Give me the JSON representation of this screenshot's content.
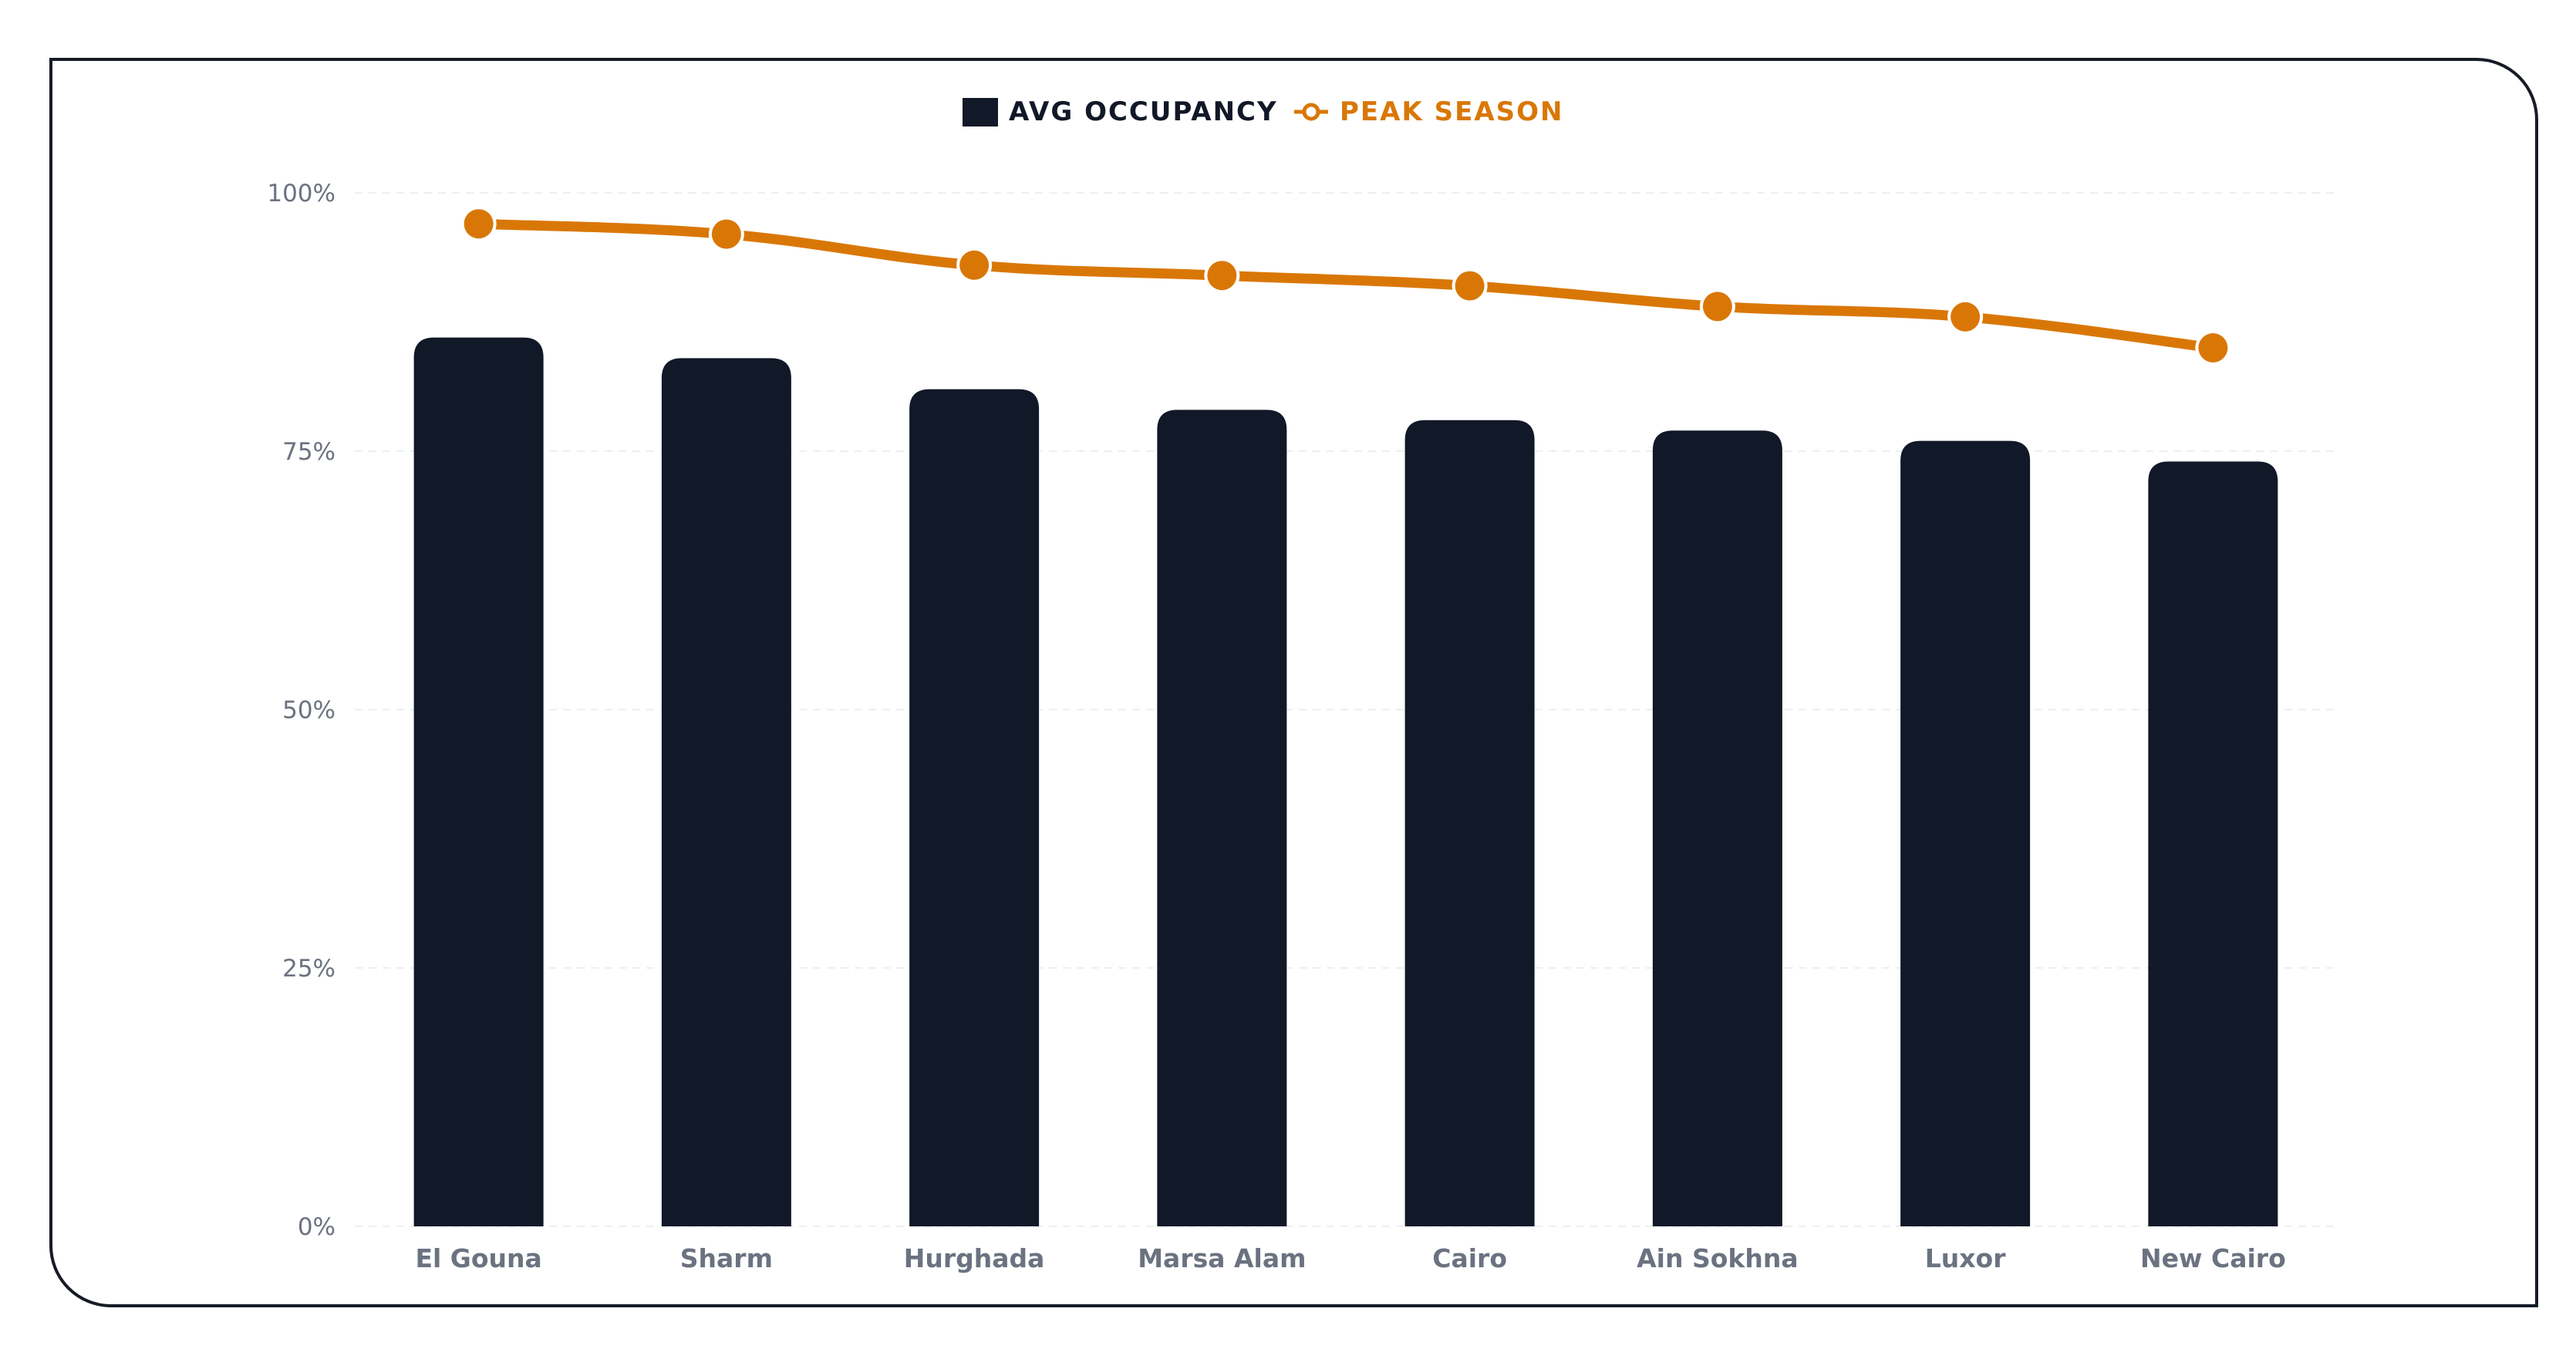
{
  "chart_data": {
    "type": "bar",
    "categories": [
      "El Gouna",
      "Sharm",
      "Hurghada",
      "Marsa Alam",
      "Cairo",
      "Ain Sokhna",
      "Luxor",
      "New Cairo"
    ],
    "series": [
      {
        "name": "AVG OCCUPANCY",
        "type": "bar",
        "color": "#111827",
        "values": [
          86,
          84,
          81,
          79,
          78,
          77,
          76,
          74
        ]
      },
      {
        "name": "PEAK SEASON",
        "type": "line",
        "color": "#d97706",
        "values": [
          97,
          96,
          93,
          92,
          91,
          89,
          88,
          85
        ]
      }
    ],
    "y_ticks": [
      "0%",
      "25%",
      "50%",
      "75%",
      "100%"
    ],
    "ylim": [
      0,
      100
    ],
    "grid": "horizontal-dashed",
    "legend_position": "top-center"
  }
}
